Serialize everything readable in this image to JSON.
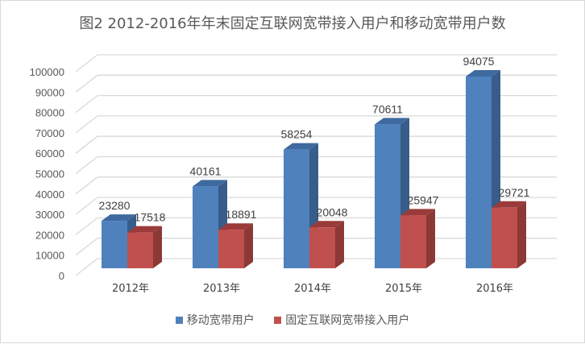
{
  "chart_data": {
    "type": "bar",
    "title": "图2  2012-2016年年末固定互联网宽带接入用户和移动宽带用户数",
    "categories": [
      "2012年",
      "2013年",
      "2014年",
      "2015年",
      "2016年"
    ],
    "series": [
      {
        "name": "移动宽带用户",
        "values": [
          23280,
          40161,
          58254,
          70611,
          94075
        ],
        "color": "#4f81bd",
        "side_color": "#385d8a",
        "top_color": "#3f6a9f"
      },
      {
        "name": "固定互联网宽带接入用户",
        "values": [
          17518,
          18891,
          20048,
          25947,
          29721
        ],
        "color": "#c0504d",
        "side_color": "#8c3836",
        "top_color": "#9b3b39"
      }
    ],
    "ylim": [
      0,
      100000
    ],
    "yticks": [
      "0",
      "10000",
      "20000",
      "30000",
      "40000",
      "50000",
      "60000",
      "70000",
      "80000",
      "90000",
      "100000"
    ],
    "grid": true,
    "legend": "bottom",
    "style": "3d-clustered-column"
  }
}
